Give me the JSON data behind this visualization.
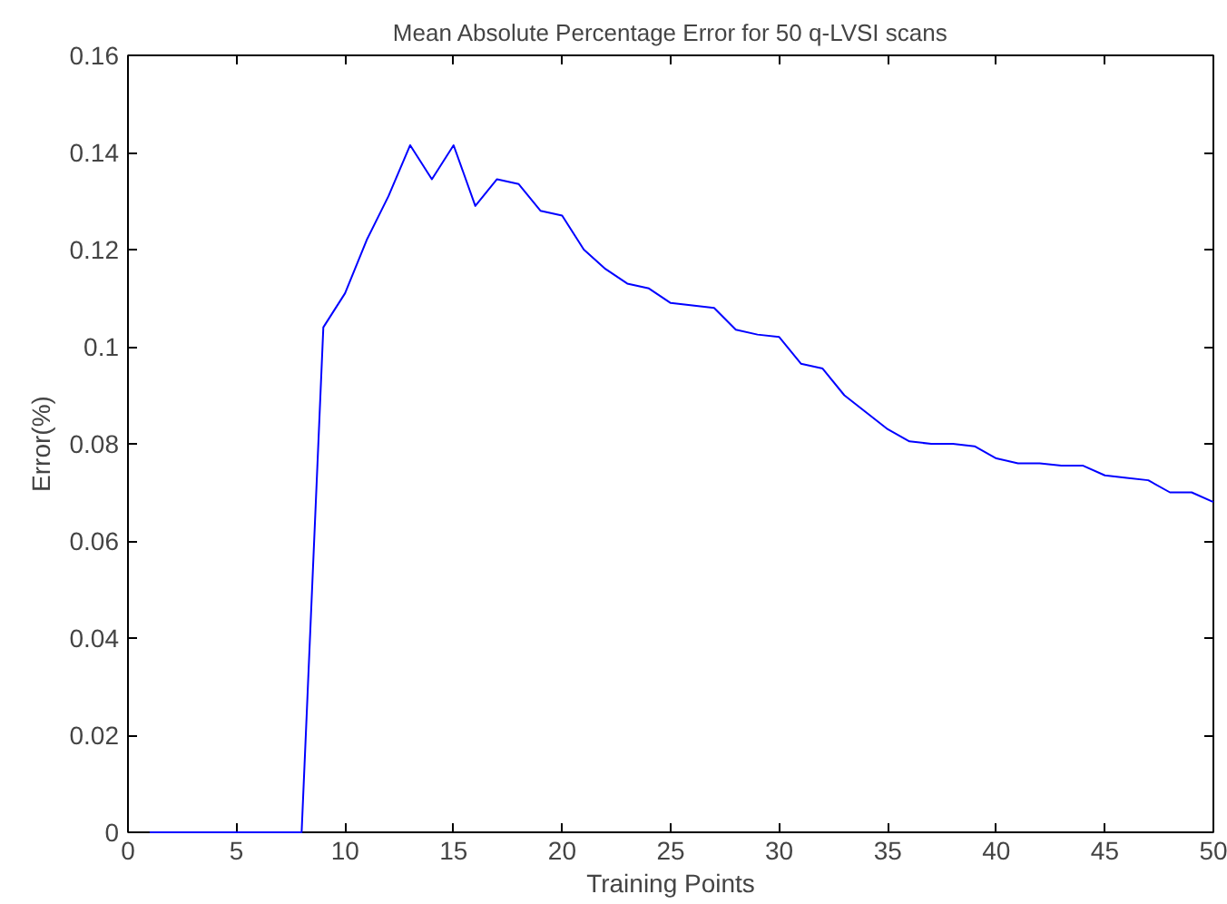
{
  "chart_data": {
    "type": "line",
    "title": "Mean Absolute Percentage Error for 50 q-LVSI scans",
    "xlabel": "Training Points",
    "ylabel": "Error(%)",
    "x": [
      1,
      2,
      3,
      4,
      5,
      6,
      7,
      8,
      9,
      10,
      11,
      12,
      13,
      14,
      15,
      16,
      17,
      18,
      19,
      20,
      21,
      22,
      23,
      24,
      25,
      26,
      27,
      28,
      29,
      30,
      31,
      32,
      33,
      34,
      35,
      36,
      37,
      38,
      39,
      40,
      41,
      42,
      43,
      44,
      45,
      46,
      47,
      48,
      49,
      50
    ],
    "series": [
      {
        "color": "#0000ff",
        "values": [
          0,
          0,
          0,
          0,
          0,
          0,
          0,
          0,
          0.104,
          0.111,
          0.122,
          0.131,
          0.1415,
          0.1345,
          0.1415,
          0.129,
          0.1345,
          0.1335,
          0.128,
          0.127,
          0.12,
          0.116,
          0.113,
          0.112,
          0.109,
          0.1085,
          0.108,
          0.1035,
          0.1025,
          0.102,
          0.0965,
          0.0955,
          0.09,
          0.0865,
          0.083,
          0.0805,
          0.08,
          0.08,
          0.0795,
          0.077,
          0.076,
          0.076,
          0.0755,
          0.0755,
          0.0735,
          0.073,
          0.0725,
          0.07,
          0.07,
          0.068
        ]
      }
    ],
    "xlim": [
      0,
      50
    ],
    "ylim": [
      0,
      0.16
    ],
    "xticks": [
      0,
      5,
      10,
      15,
      20,
      25,
      30,
      35,
      40,
      45,
      50
    ],
    "yticks": [
      0,
      0.02,
      0.04,
      0.06,
      0.08,
      0.1,
      0.12,
      0.14,
      0.16
    ],
    "grid": false
  }
}
